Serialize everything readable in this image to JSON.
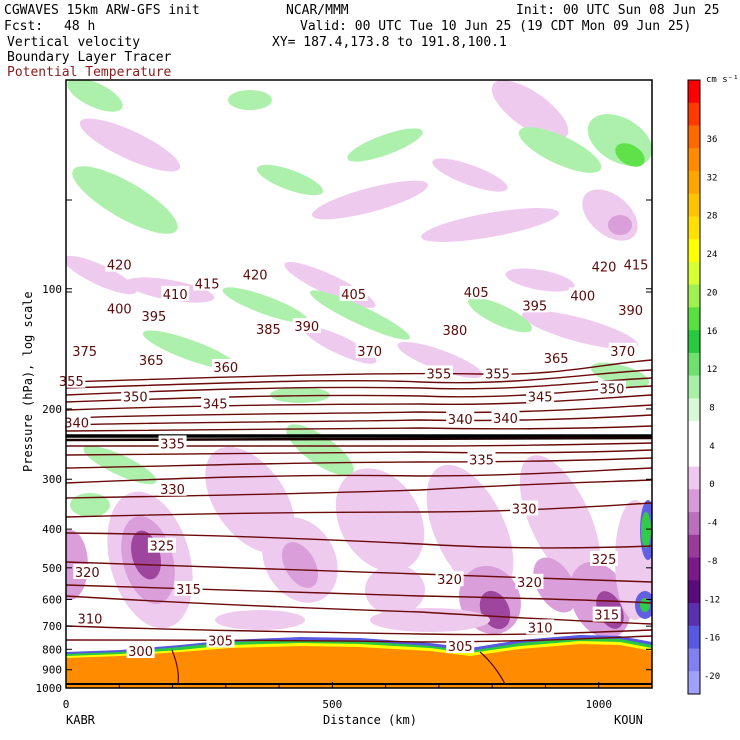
{
  "header": {
    "run": "CGWAVES 15km ARW-GFS init",
    "org": "NCAR/MMM",
    "init": "Init: 00 UTC Sun 08 Jun 25",
    "fcst_label": "Fcst:",
    "fcst_value": "48 h",
    "valid": "Valid: 00 UTC Tue 10 Jun 25 (19 CDT Mon 09 Jun 25)",
    "field1": "Vertical velocity",
    "xy": "XY= 187.4,173.8 to 191.8,100.1",
    "field2": "Boundary Layer Tracer",
    "field3": "Potential Temperature"
  },
  "chart_data": {
    "type": "cross-section",
    "ylabel": "Pressure (hPa), log scale",
    "xlabel": "Distance (km)",
    "x_ticks": [
      "0",
      "500",
      "1000"
    ],
    "y_ticks": [
      "100",
      "200",
      "300",
      "400",
      "500",
      "600",
      "700",
      "800",
      "900",
      "1000"
    ],
    "y_scale": "log",
    "xlim": [
      0,
      1100
    ],
    "ylim": [
      1000,
      30
    ],
    "left_station": "KABR",
    "right_station": "KOUN",
    "colorbar": {
      "unit": "cm s⁻¹",
      "ticks": [
        "36",
        "32",
        "28",
        "24",
        "20",
        "16",
        "12",
        "8",
        "4",
        "0",
        "-4",
        "-8",
        "-12",
        "-16",
        "-20"
      ],
      "colors": [
        "#ff0000",
        "#ff3a00",
        "#ff6a00",
        "#ff8c00",
        "#ffa500",
        "#ffc400",
        "#ffe000",
        "#ffff00",
        "#d8ff30",
        "#a0f050",
        "#58e040",
        "#28c840",
        "#70e070",
        "#a8f0a8",
        "#d8f8d8",
        "#ffffff",
        "#ffffff",
        "#efc8ef",
        "#d99ad9",
        "#bb6ebb",
        "#993c99",
        "#7a1a8a",
        "#5a0a7a",
        "#5a30b0",
        "#5858e0",
        "#8080f0",
        "#a0a0ff"
      ]
    },
    "theta_labels": [
      {
        "x": 100,
        "p": 87,
        "v": "420"
      },
      {
        "x": 1070,
        "p": 87,
        "v": "415"
      },
      {
        "x": 1010,
        "p": 88,
        "v": "420"
      },
      {
        "x": 355,
        "p": 92,
        "v": "420"
      },
      {
        "x": 265,
        "p": 97,
        "v": "415"
      },
      {
        "x": 205,
        "p": 103,
        "v": "410"
      },
      {
        "x": 540,
        "p": 103,
        "v": "405"
      },
      {
        "x": 770,
        "p": 102,
        "v": "405"
      },
      {
        "x": 970,
        "p": 104,
        "v": "400"
      },
      {
        "x": 100,
        "p": 112,
        "v": "400"
      },
      {
        "x": 880,
        "p": 110,
        "v": "395"
      },
      {
        "x": 1060,
        "p": 113,
        "v": "390"
      },
      {
        "x": 165,
        "p": 117,
        "v": "395"
      },
      {
        "x": 380,
        "p": 126,
        "v": "385"
      },
      {
        "x": 452,
        "p": 124,
        "v": "390"
      },
      {
        "x": 730,
        "p": 127,
        "v": "380"
      },
      {
        "x": 35,
        "p": 143,
        "v": "375"
      },
      {
        "x": 570,
        "p": 143,
        "v": "370"
      },
      {
        "x": 1045,
        "p": 143,
        "v": "370"
      },
      {
        "x": 160,
        "p": 151,
        "v": "365"
      },
      {
        "x": 920,
        "p": 149,
        "v": "365"
      },
      {
        "x": 300,
        "p": 157,
        "v": "360"
      },
      {
        "x": 700,
        "p": 163,
        "v": "355"
      },
      {
        "x": 810,
        "p": 163,
        "v": "355"
      },
      {
        "x": 10,
        "p": 170,
        "v": "355"
      },
      {
        "x": 1025,
        "p": 178,
        "v": "350"
      },
      {
        "x": 130,
        "p": 186,
        "v": "350"
      },
      {
        "x": 890,
        "p": 186,
        "v": "345"
      },
      {
        "x": 280,
        "p": 194,
        "v": "345"
      },
      {
        "x": 740,
        "p": 212,
        "v": "340"
      },
      {
        "x": 825,
        "p": 211,
        "v": "340"
      },
      {
        "x": 20,
        "p": 216,
        "v": "340"
      },
      {
        "x": 200,
        "p": 244,
        "v": "335"
      },
      {
        "x": 780,
        "p": 268,
        "v": "335"
      },
      {
        "x": 200,
        "p": 317,
        "v": "330"
      },
      {
        "x": 860,
        "p": 355,
        "v": "330"
      },
      {
        "x": 180,
        "p": 440,
        "v": "325"
      },
      {
        "x": 1010,
        "p": 475,
        "v": "325"
      },
      {
        "x": 40,
        "p": 512,
        "v": "320"
      },
      {
        "x": 720,
        "p": 534,
        "v": "320"
      },
      {
        "x": 870,
        "p": 542,
        "v": "320"
      },
      {
        "x": 230,
        "p": 565,
        "v": "315"
      },
      {
        "x": 1015,
        "p": 655,
        "v": "315"
      },
      {
        "x": 45,
        "p": 670,
        "v": "310"
      },
      {
        "x": 890,
        "p": 705,
        "v": "310"
      },
      {
        "x": 290,
        "p": 760,
        "v": "305"
      },
      {
        "x": 740,
        "p": 785,
        "v": "305"
      },
      {
        "x": 140,
        "p": 808,
        "v": "300"
      }
    ]
  }
}
